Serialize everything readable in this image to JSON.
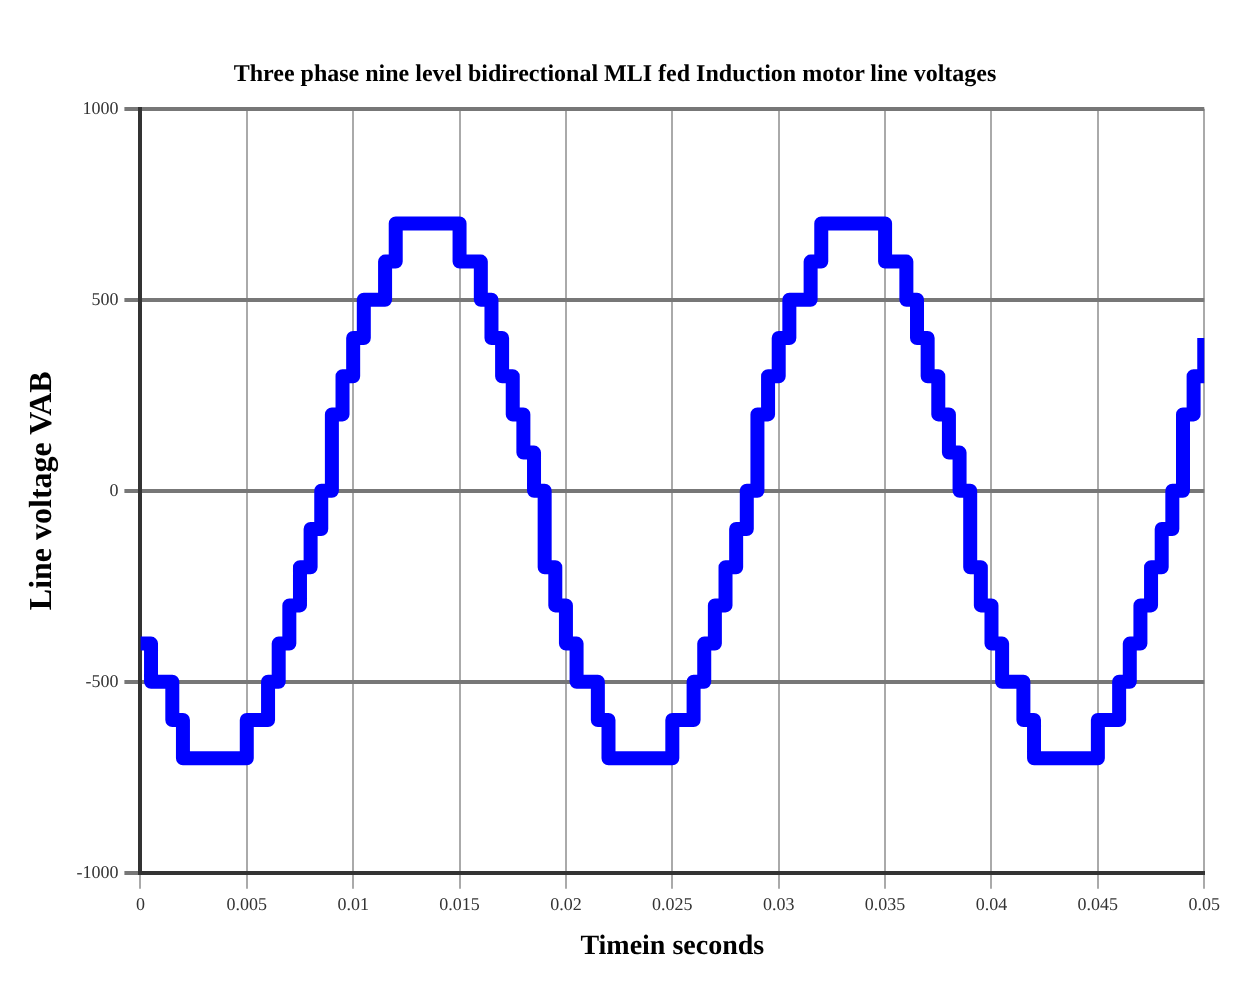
{
  "chart_data": {
    "type": "step",
    "title": "Three phase nine level bidirectional MLI fed Induction motor line voltages",
    "xlabel": "Timein seconds",
    "ylabel": "Line voltage VAB",
    "xlim": [
      0,
      0.05
    ],
    "ylim": [
      -1000,
      1000
    ],
    "xticks": [
      0,
      0.005,
      0.01,
      0.015,
      0.02,
      0.025,
      0.03,
      0.035,
      0.04,
      0.045,
      0.05
    ],
    "yticks": [
      -1000,
      -500,
      0,
      500,
      1000
    ],
    "grid": true,
    "legend": false,
    "marker": "none",
    "line_style": "solid",
    "x": [
      0,
      0.0005,
      0.001,
      0.0015,
      0.002,
      0.0025,
      0.003,
      0.0035,
      0.004,
      0.0045,
      0.005,
      0.0055,
      0.006,
      0.0065,
      0.007,
      0.0075,
      0.008,
      0.0085,
      0.009,
      0.0095,
      0.01,
      0.0105,
      0.011,
      0.0115,
      0.012,
      0.0125,
      0.013,
      0.0135,
      0.014,
      0.0145,
      0.015,
      0.0155,
      0.016,
      0.0165,
      0.017,
      0.0175,
      0.018,
      0.0185,
      0.019,
      0.0195,
      0.02,
      0.0205,
      0.021,
      0.0215,
      0.022,
      0.0225,
      0.023,
      0.0235,
      0.024,
      0.0245,
      0.025,
      0.0255,
      0.026,
      0.0265,
      0.027,
      0.0275,
      0.028,
      0.0285,
      0.029,
      0.0295,
      0.03,
      0.0305,
      0.031,
      0.0315,
      0.032,
      0.0325,
      0.033,
      0.0335,
      0.034,
      0.0345,
      0.035,
      0.0355,
      0.036,
      0.0365,
      0.037,
      0.0375,
      0.038,
      0.0385,
      0.039,
      0.0395,
      0.04,
      0.0405,
      0.041,
      0.0415,
      0.042,
      0.0425,
      0.043,
      0.0435,
      0.044,
      0.0445,
      0.045,
      0.0455,
      0.046,
      0.0465,
      0.047,
      0.0475,
      0.048,
      0.0485,
      0.049,
      0.0495,
      0.05
    ],
    "series": [
      {
        "color": "#0000ff",
        "values": [
          -400,
          -500,
          -500,
          -600,
          -700,
          -700,
          -700,
          -700,
          -700,
          -700,
          -600,
          -600,
          -500,
          -400,
          -300,
          -200,
          -100,
          0,
          200,
          300,
          400,
          500,
          500,
          600,
          700,
          700,
          700,
          700,
          700,
          700,
          600,
          600,
          500,
          400,
          300,
          200,
          100,
          0,
          -200,
          -300,
          -400,
          -500,
          -500,
          -600,
          -700,
          -700,
          -700,
          -700,
          -700,
          -700,
          -600,
          -600,
          -500,
          -400,
          -300,
          -200,
          -100,
          0,
          200,
          300,
          400,
          500,
          500,
          600,
          700,
          700,
          700,
          700,
          700,
          700,
          600,
          600,
          500,
          400,
          300,
          200,
          100,
          0,
          -200,
          -300,
          -400,
          -500,
          -500,
          -600,
          -700,
          -700,
          -700,
          -700,
          -700,
          -700,
          -600,
          -600,
          -500,
          -400,
          -300,
          -200,
          -100,
          0,
          200,
          300,
          400
        ]
      }
    ]
  }
}
